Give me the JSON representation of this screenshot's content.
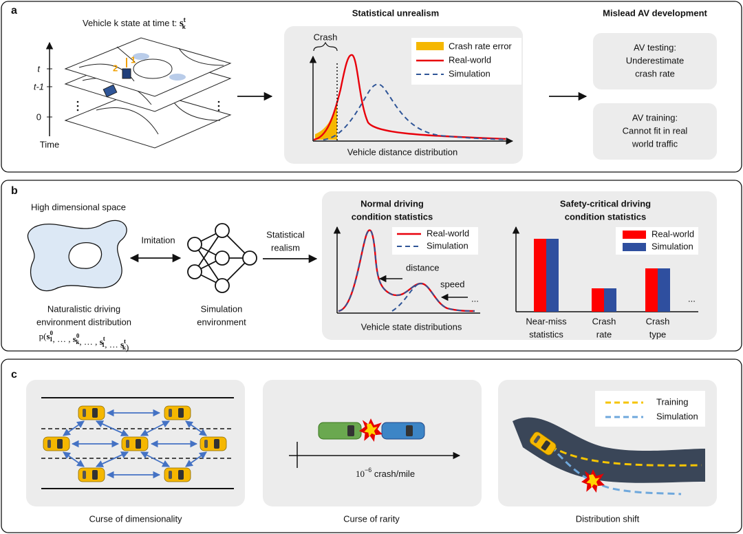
{
  "panel_a": {
    "label": "a",
    "state_title": {
      "text": "Vehicle k state at time t: ",
      "symbol": "s",
      "sup": "t",
      "sub": "k"
    },
    "time_axis": {
      "ticks": [
        "t",
        "t-1",
        "0"
      ],
      "label": "Time"
    },
    "map_numbers": [
      "1",
      "2"
    ],
    "unrealism": {
      "title": "Statistical unrealism",
      "crash_label": "Crash",
      "legend": [
        "Crash rate error",
        "Real-world",
        "Simulation"
      ],
      "x_label": "Vehicle distance distribution"
    },
    "mislead": {
      "title": "Mislead AV development",
      "boxes": [
        [
          "AV testing:",
          "Underestimate",
          "crash rate"
        ],
        [
          "AV training:",
          "Cannot fit in real",
          "world traffic"
        ]
      ]
    }
  },
  "panel_b": {
    "label": "b",
    "space_title": "High dimensional space",
    "imitation": "Imitation",
    "realism": [
      "Statistical",
      "realism"
    ],
    "naturalistic": [
      "Naturalistic driving",
      "environment distribution"
    ],
    "formula": [
      {
        "t": "p("
      },
      {
        "t": "s",
        "sub": "1",
        "sup": "0"
      },
      {
        "t": ", … , "
      },
      {
        "t": "s",
        "sub": "k",
        "sup": "0"
      },
      {
        "t": ", … , "
      },
      {
        "t": "s",
        "sub": "1",
        "sup": "t"
      },
      {
        "t": ", … "
      },
      {
        "t": "s",
        "sub": "k",
        "sup": "t"
      },
      {
        "t": ")"
      }
    ],
    "simulation_env": [
      "Simulation",
      "environment"
    ],
    "normal": {
      "title": [
        "Normal driving",
        "condition statistics"
      ],
      "legend": [
        "Real-world",
        "Simulation"
      ],
      "annotations": [
        "distance",
        "speed"
      ],
      "ellipsis": "...",
      "x_label": "Vehicle state distributions"
    },
    "safety": {
      "title": [
        "Safety-critical driving",
        "condition statistics"
      ],
      "categories": [
        [
          "Near-miss",
          "statistics"
        ],
        [
          "Crash",
          "rate"
        ],
        [
          "Crash",
          "type"
        ]
      ],
      "series": [
        {
          "name": "Real-world",
          "color": "#ff0000",
          "values": [
            106,
            34,
            63
          ]
        },
        {
          "name": "Simulation",
          "color": "#2f4f9f",
          "values": [
            106,
            34,
            63
          ]
        }
      ],
      "ylim": [
        0,
        120
      ],
      "ellipsis": "..."
    }
  },
  "panel_c": {
    "label": "c",
    "captions": [
      "Curse of dimensionality",
      "Curse of rarity",
      "Distribution shift"
    ],
    "rarity": {
      "base": "10",
      "exponent": "−6",
      "unit": " crash/mile"
    },
    "shift_legend": [
      "Training",
      "Simulation"
    ]
  }
}
